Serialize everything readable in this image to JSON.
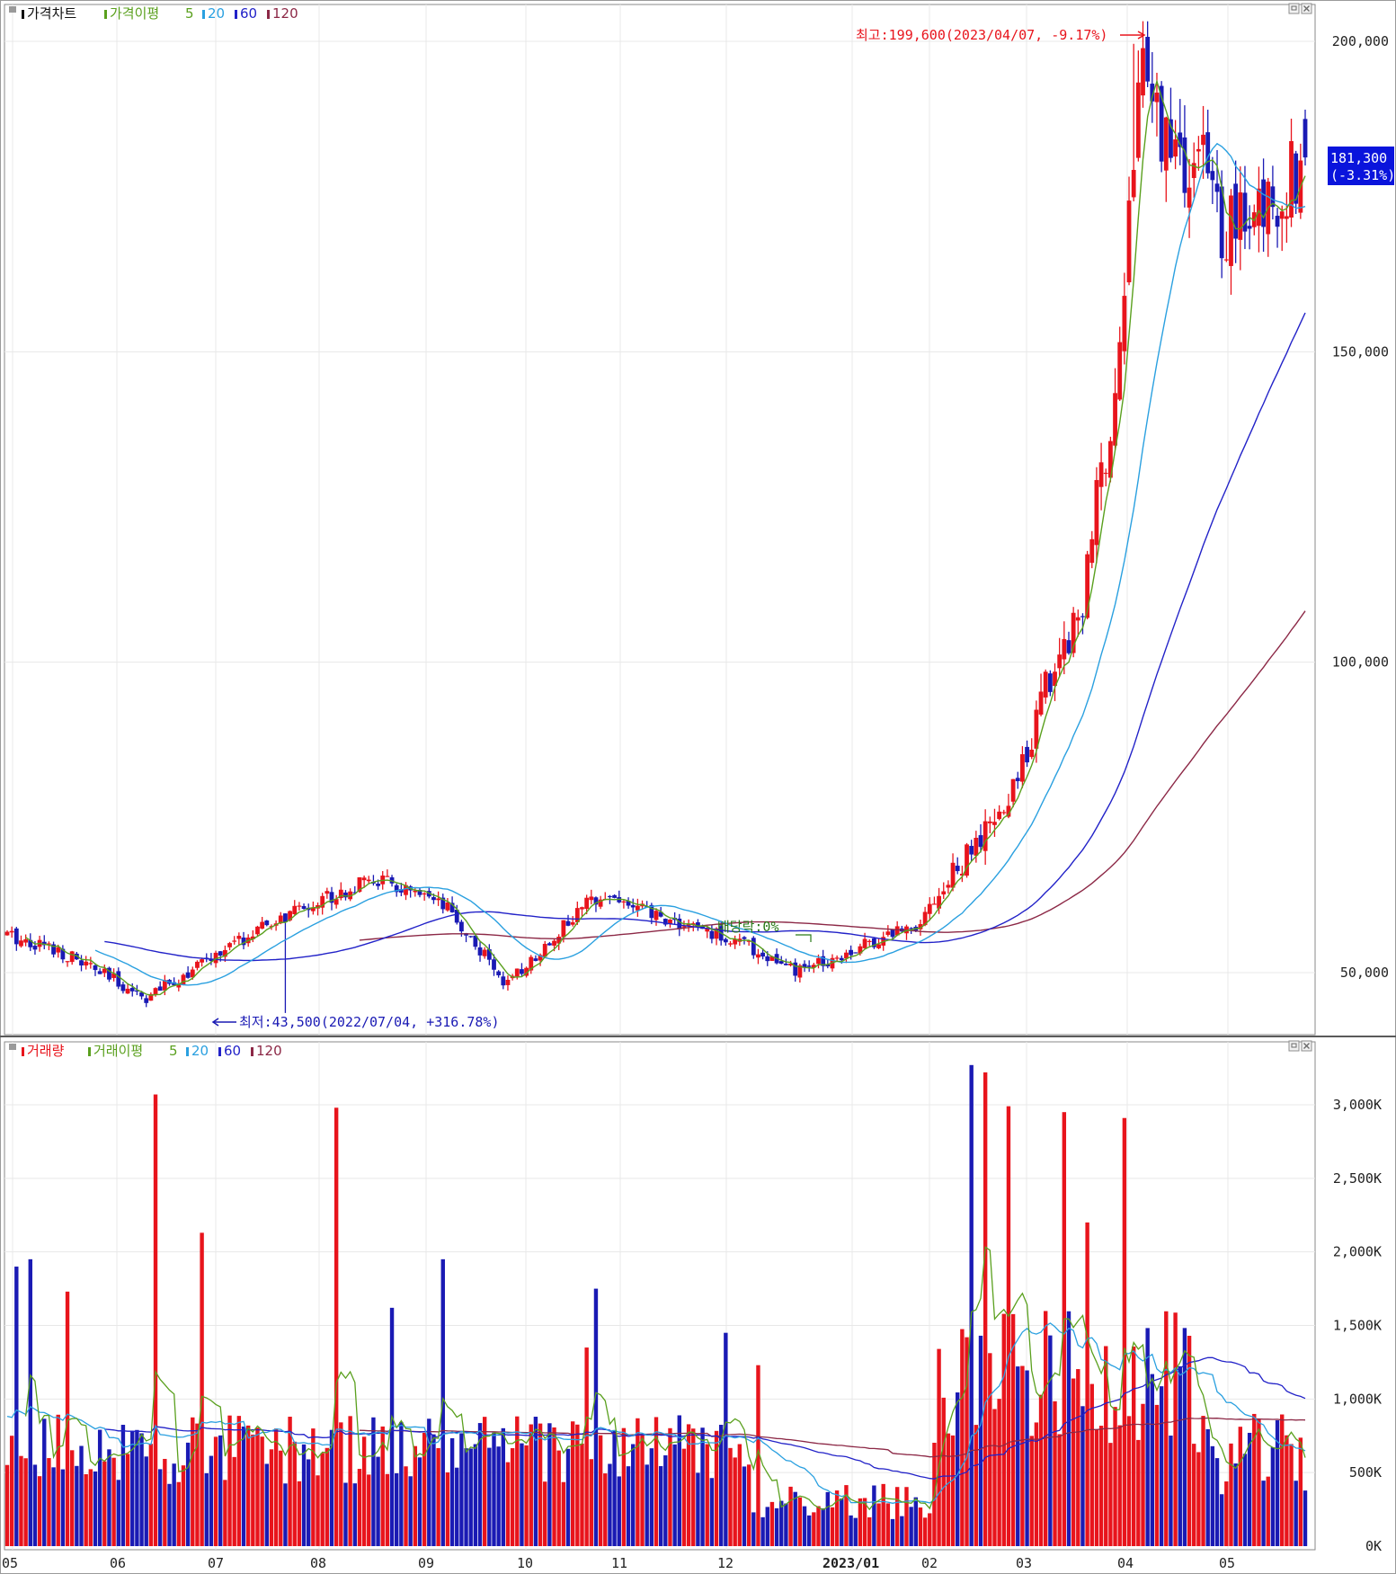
{
  "price_panel": {
    "legend": {
      "title": "가격차트",
      "ma_label": "가격이평",
      "periods": [
        "5",
        "20",
        "60",
        "120"
      ]
    },
    "high_annotation": "최고:199,600(2023/04/07, -9.17%)",
    "low_annotation": "최저:43,500(2022/07/04, +316.78%)",
    "dividend_annotation": "배당락:0%",
    "current_price": "181,300",
    "current_change": "(-3.31%)"
  },
  "volume_panel": {
    "legend": {
      "title": "거래량",
      "ma_label": "거래이평",
      "periods": [
        "5",
        "20",
        "60",
        "120"
      ]
    }
  },
  "colors": {
    "up": "#e8141c",
    "down": "#1a1ab4",
    "ma5": "#5aa01e",
    "ma20": "#2aa0e0",
    "ma60": "#2222c8",
    "ma120": "#8c2846",
    "grid": "#e8e8e8",
    "current_box": "#0a14dc"
  },
  "icons": [
    "minimize-icon",
    "close-icon"
  ],
  "chart_data": [
    {
      "type": "candlestick",
      "y_ticks": [
        "200,000",
        "150,000",
        "100,000",
        "50,000"
      ],
      "y_tick_values": [
        200000,
        150000,
        100000,
        50000
      ],
      "ylim": [
        40500,
        205000
      ],
      "x_tick_labels": [
        "05",
        "06",
        "07",
        "08",
        "09",
        "10",
        "11",
        "12",
        "2023/01",
        "02",
        "03",
        "04",
        "05"
      ],
      "anchors": {
        "x": [
          0,
          10,
          30,
          50,
          68,
          80,
          95,
          108,
          118,
          128,
          140,
          158,
          170,
          180,
          196,
          216,
          224,
          232,
          240,
          244,
          250,
          254,
          258,
          262,
          270,
          280
        ],
        "close": [
          56000,
          54000,
          46000,
          55000,
          62000,
          65000,
          60000,
          48000,
          56000,
          63000,
          59000,
          55000,
          50000,
          53000,
          58000,
          77000,
          96000,
          110000,
          150000,
          195000,
          185000,
          178000,
          180000,
          170000,
          172000,
          181300
        ]
      },
      "session_count": 281,
      "high": {
        "value": 199600,
        "date": "2023/04/07"
      },
      "low": {
        "value": 43500,
        "date": "2022/07/04"
      },
      "last": {
        "value": 181300,
        "change_pct": -3.31
      },
      "moving_averages": [
        5,
        20,
        60,
        120
      ]
    },
    {
      "type": "bar",
      "y_ticks": [
        "3,000K",
        "2,500K",
        "2,000K",
        "1,500K",
        "1,000K",
        "500K",
        "0K"
      ],
      "y_tick_values": [
        3000,
        2500,
        2000,
        1500,
        1000,
        500,
        0
      ],
      "ylim": [
        0,
        3300
      ],
      "unit": "K",
      "spikes": {
        "x": [
          2,
          5,
          13,
          32,
          42,
          71,
          83,
          94,
          125,
          127,
          155,
          162,
          208,
          211,
          216,
          228,
          233,
          241
        ],
        "volume": [
          1900,
          1950,
          1730,
          3070,
          2130,
          2980,
          1620,
          1950,
          1350,
          1750,
          1450,
          1230,
          3270,
          3220,
          2990,
          2950,
          2200,
          2910
        ]
      },
      "moving_averages": [
        5,
        20,
        60,
        120
      ]
    }
  ]
}
